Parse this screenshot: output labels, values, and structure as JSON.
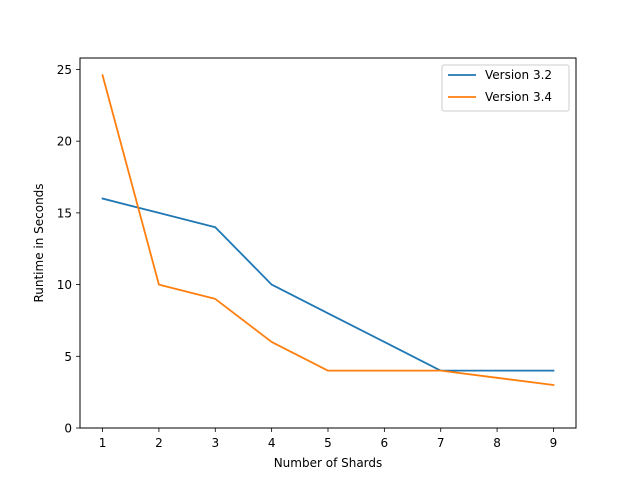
{
  "chart_data": {
    "type": "line",
    "title": "",
    "xlabel": "Number of Shards",
    "ylabel": "Runtime in Seconds",
    "x": [
      1,
      2,
      3,
      4,
      5,
      6,
      7,
      8,
      9
    ],
    "xlim": [
      0.6,
      9.4
    ],
    "ylim": [
      0,
      25.8
    ],
    "xticks": [
      1,
      2,
      3,
      4,
      5,
      6,
      7,
      8,
      9
    ],
    "yticks": [
      0,
      5,
      10,
      15,
      20,
      25
    ],
    "grid": false,
    "legend_position": "top-right",
    "series": [
      {
        "name": "Version 3.2",
        "color": "#1f77b4",
        "x": [
          1,
          2,
          3,
          4,
          5,
          6,
          7,
          8,
          9
        ],
        "values": [
          16,
          15,
          14,
          10,
          8,
          6,
          4,
          4,
          4
        ]
      },
      {
        "name": "Version 3.4",
        "color": "#ff7f0e",
        "x": [
          1,
          2,
          3,
          4,
          5,
          6,
          7,
          8,
          9
        ],
        "values": [
          24.6,
          10,
          9,
          6,
          4,
          4,
          4,
          3.5,
          3
        ]
      }
    ]
  }
}
